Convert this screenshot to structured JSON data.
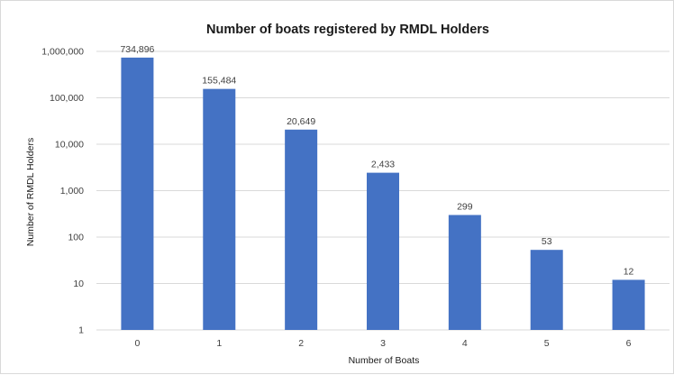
{
  "chart_data": {
    "type": "bar",
    "title": "Number of boats registered by RMDL Holders",
    "xlabel": "Number of Boats",
    "ylabel": "Number of RMDL Holders",
    "y_scale": "log",
    "ylim": [
      1,
      1000000
    ],
    "y_ticks": [
      1,
      10,
      100,
      1000,
      10000,
      100000,
      1000000
    ],
    "y_tick_labels": [
      "1",
      "10",
      "100",
      "1,000",
      "10,000",
      "100,000",
      "1,000,000"
    ],
    "categories": [
      "0",
      "1",
      "2",
      "3",
      "4",
      "5",
      "6"
    ],
    "values": [
      734896,
      155484,
      20649,
      2433,
      299,
      53,
      12
    ],
    "data_labels": [
      "734,896",
      "155,484",
      "20,649",
      "2,433",
      "299",
      "53",
      "12"
    ],
    "bar_color": "#4472c4",
    "gridline_color": "#d9d9d9",
    "grid": true,
    "legend": "none"
  }
}
